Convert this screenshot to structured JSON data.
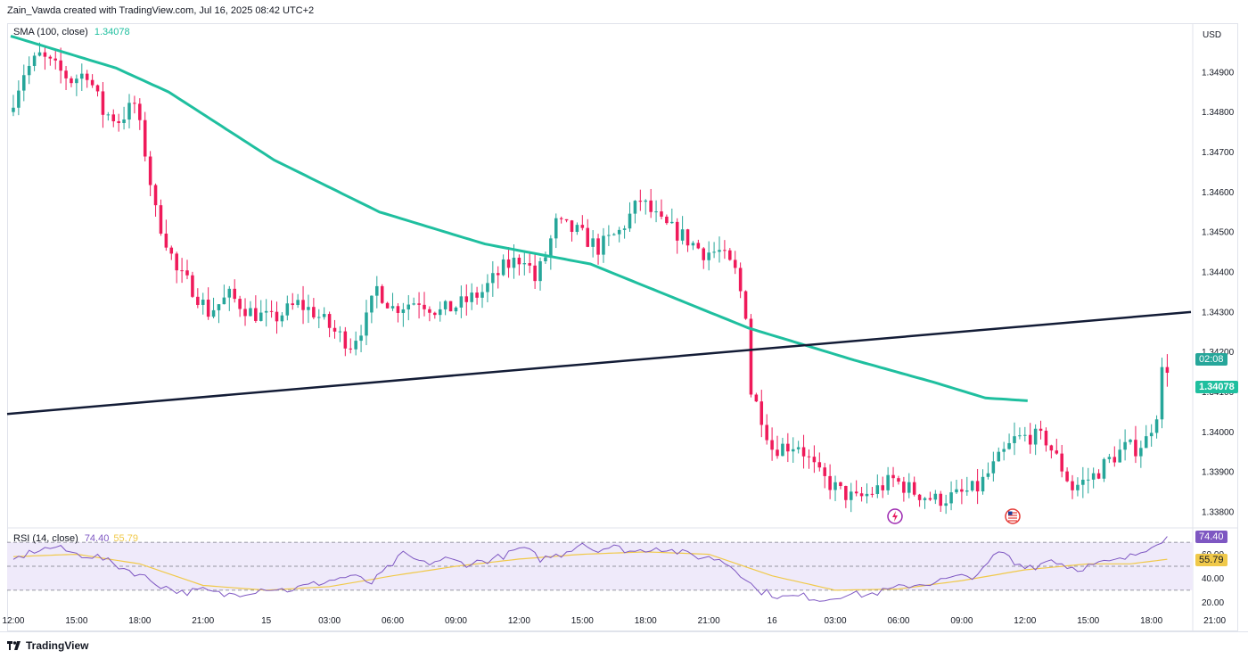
{
  "header": {
    "text": "Zain_Vawda created with TradingView.com, Jul 16, 2025 08:42 UTC+2"
  },
  "footer": {
    "brand": "TradingView"
  },
  "currency": "USD",
  "colors": {
    "up": "#26a69a",
    "down": "#ef1a5a",
    "sma": "#1fbf9f",
    "trendline": "#131c36",
    "rsi": "#7e57c2",
    "rsi_ma": "#f0c94a",
    "rsi_band": "#efeafa"
  },
  "legend": {
    "sma": {
      "name": "SMA (100, close)",
      "value": "1.34078"
    },
    "rsi": {
      "name": "RSI (14, close)",
      "value": "74.40",
      "ma_value": "55.79"
    }
  },
  "price_tags": {
    "countdown": "02:08",
    "sma": "1.34078"
  },
  "rsi_tags": {
    "rsi": "74.40",
    "ma": "55.79"
  },
  "icons": [
    "lightning-event-icon",
    "us-flag-event-icon"
  ],
  "chart_data": [
    {
      "type": "candlestick",
      "ylabel": "USD",
      "ylim": [
        1.3376,
        1.3502
      ],
      "y_ticks": [
        "1.34900",
        "1.34800",
        "1.34700",
        "1.34600",
        "1.34500",
        "1.34400",
        "1.34300",
        "1.34200",
        "1.34100",
        "1.34000",
        "1.33900",
        "1.33800"
      ],
      "x_tick_labels": [
        "12:00",
        "15:00",
        "18:00",
        "21:00",
        "15",
        "03:00",
        "06:00",
        "09:00",
        "12:00",
        "15:00",
        "18:00",
        "21:00",
        "16",
        "03:00",
        "06:00",
        "09:00",
        "12:00",
        "15:00",
        "18:00",
        "21:00"
      ],
      "hours_per_tick": 3,
      "candle_minutes": 15,
      "candles_shown": 224,
      "series": [
        {
          "name": "SMA (100, close)",
          "anchor_points": [
            [
              0,
              1.3499
            ],
            [
              20,
              1.3491
            ],
            [
              30,
              1.3485
            ],
            [
              50,
              1.3468
            ],
            [
              70,
              1.3455
            ],
            [
              90,
              1.3447
            ],
            [
              110,
              1.3442
            ],
            [
              125,
              1.3434
            ],
            [
              140,
              1.3426
            ],
            [
              160,
              1.3418
            ],
            [
              175,
              1.34125
            ],
            [
              185,
              1.34085
            ],
            [
              193,
              1.34078
            ]
          ]
        },
        {
          "name": "trendline",
          "from": [
            0,
            1.34045
          ],
          "to": [
            224,
            1.343
          ]
        }
      ],
      "price_anchors": [
        [
          0,
          1.348
        ],
        [
          3,
          1.349
        ],
        [
          6,
          1.3494
        ],
        [
          8,
          1.3492
        ],
        [
          12,
          1.3488
        ],
        [
          15,
          1.349
        ],
        [
          18,
          1.348
        ],
        [
          21,
          1.3478
        ],
        [
          24,
          1.3482
        ],
        [
          26,
          1.347
        ],
        [
          28,
          1.3455
        ],
        [
          30,
          1.3448
        ],
        [
          32,
          1.344
        ],
        [
          35,
          1.3436
        ],
        [
          38,
          1.343
        ],
        [
          42,
          1.3434
        ],
        [
          46,
          1.343
        ],
        [
          50,
          1.3428
        ],
        [
          55,
          1.3432
        ],
        [
          58,
          1.343
        ],
        [
          62,
          1.3425
        ],
        [
          65,
          1.3422
        ],
        [
          68,
          1.3428
        ],
        [
          70,
          1.3436
        ],
        [
          73,
          1.3431
        ],
        [
          78,
          1.3433
        ],
        [
          82,
          1.343
        ],
        [
          86,
          1.3432
        ],
        [
          90,
          1.3435
        ],
        [
          94,
          1.3441
        ],
        [
          98,
          1.3444
        ],
        [
          100,
          1.3438
        ],
        [
          102,
          1.3444
        ],
        [
          104,
          1.3452
        ],
        [
          108,
          1.345
        ],
        [
          112,
          1.3446
        ],
        [
          116,
          1.345
        ],
        [
          120,
          1.3458
        ],
        [
          124,
          1.3452
        ],
        [
          128,
          1.3449
        ],
        [
          132,
          1.3445
        ],
        [
          135,
          1.3445
        ],
        [
          138,
          1.344
        ],
        [
          140,
          1.343
        ],
        [
          141,
          1.341
        ],
        [
          143,
          1.3404
        ],
        [
          145,
          1.3396
        ],
        [
          150,
          1.3397
        ],
        [
          154,
          1.3389
        ],
        [
          158,
          1.3385
        ],
        [
          161,
          1.3383
        ],
        [
          164,
          1.3385
        ],
        [
          168,
          1.3388
        ],
        [
          172,
          1.3385
        ],
        [
          176,
          1.3383
        ],
        [
          180,
          1.3384
        ],
        [
          184,
          1.3386
        ],
        [
          188,
          1.3393
        ],
        [
          191,
          1.3398
        ],
        [
          194,
          1.3399
        ],
        [
          197,
          1.3398
        ],
        [
          200,
          1.3391
        ],
        [
          202,
          1.3386
        ],
        [
          206,
          1.3389
        ],
        [
          209,
          1.3393
        ],
        [
          212,
          1.3396
        ],
        [
          214,
          1.3396
        ],
        [
          216,
          1.3398
        ],
        [
          218,
          1.3405
        ],
        [
          219,
          1.3415
        ]
      ]
    },
    {
      "type": "line",
      "name": "RSI (14, close)",
      "ylim": [
        15,
        82
      ],
      "y_ticks": [
        "60.00",
        "40.00",
        "20.00"
      ],
      "band": [
        30,
        70
      ],
      "series": [
        {
          "name": "RSI (14, close)",
          "anchor_points": [
            [
              0,
              55
            ],
            [
              4,
              63
            ],
            [
              8,
              66
            ],
            [
              12,
              60
            ],
            [
              16,
              58
            ],
            [
              20,
              50
            ],
            [
              24,
              43
            ],
            [
              28,
              34
            ],
            [
              32,
              28
            ],
            [
              36,
              30
            ],
            [
              40,
              26
            ],
            [
              44,
              28
            ],
            [
              48,
              32
            ],
            [
              52,
              30
            ],
            [
              56,
              34
            ],
            [
              60,
              38
            ],
            [
              64,
              42
            ],
            [
              68,
              36
            ],
            [
              72,
              52
            ],
            [
              74,
              60
            ],
            [
              78,
              52
            ],
            [
              82,
              56
            ],
            [
              86,
              52
            ],
            [
              90,
              55
            ],
            [
              94,
              60
            ],
            [
              96,
              65
            ],
            [
              98,
              62
            ],
            [
              100,
              56
            ],
            [
              104,
              60
            ],
            [
              108,
              70
            ],
            [
              110,
              64
            ],
            [
              114,
              66
            ],
            [
              118,
              62
            ],
            [
              122,
              66
            ],
            [
              126,
              62
            ],
            [
              130,
              58
            ],
            [
              134,
              56
            ],
            [
              137,
              48
            ],
            [
              139,
              40
            ],
            [
              141,
              30
            ],
            [
              143,
              28
            ],
            [
              146,
              24
            ],
            [
              150,
              25
            ],
            [
              154,
              22
            ],
            [
              158,
              27
            ],
            [
              162,
              26
            ],
            [
              166,
              30
            ],
            [
              170,
              34
            ],
            [
              174,
              36
            ],
            [
              178,
              40
            ],
            [
              182,
              42
            ],
            [
              184,
              46
            ],
            [
              186,
              58
            ],
            [
              188,
              62
            ],
            [
              190,
              52
            ],
            [
              194,
              50
            ],
            [
              197,
              56
            ],
            [
              200,
              50
            ],
            [
              202,
              48
            ],
            [
              206,
              52
            ],
            [
              210,
              55
            ],
            [
              212,
              58
            ],
            [
              214,
              62
            ],
            [
              216,
              68
            ],
            [
              219,
              74.4
            ]
          ]
        },
        {
          "name": "RSI MA",
          "anchor_points": [
            [
              0,
              58
            ],
            [
              12,
              60
            ],
            [
              24,
              52
            ],
            [
              36,
              34
            ],
            [
              48,
              30
            ],
            [
              60,
              33
            ],
            [
              72,
              42
            ],
            [
              84,
              50
            ],
            [
              96,
              56
            ],
            [
              108,
              60
            ],
            [
              120,
              62
            ],
            [
              132,
              60
            ],
            [
              144,
              42
            ],
            [
              156,
              30
            ],
            [
              168,
              31
            ],
            [
              180,
              38
            ],
            [
              192,
              47
            ],
            [
              204,
              52
            ],
            [
              212,
              52
            ],
            [
              219,
              55.79
            ]
          ]
        }
      ]
    }
  ]
}
